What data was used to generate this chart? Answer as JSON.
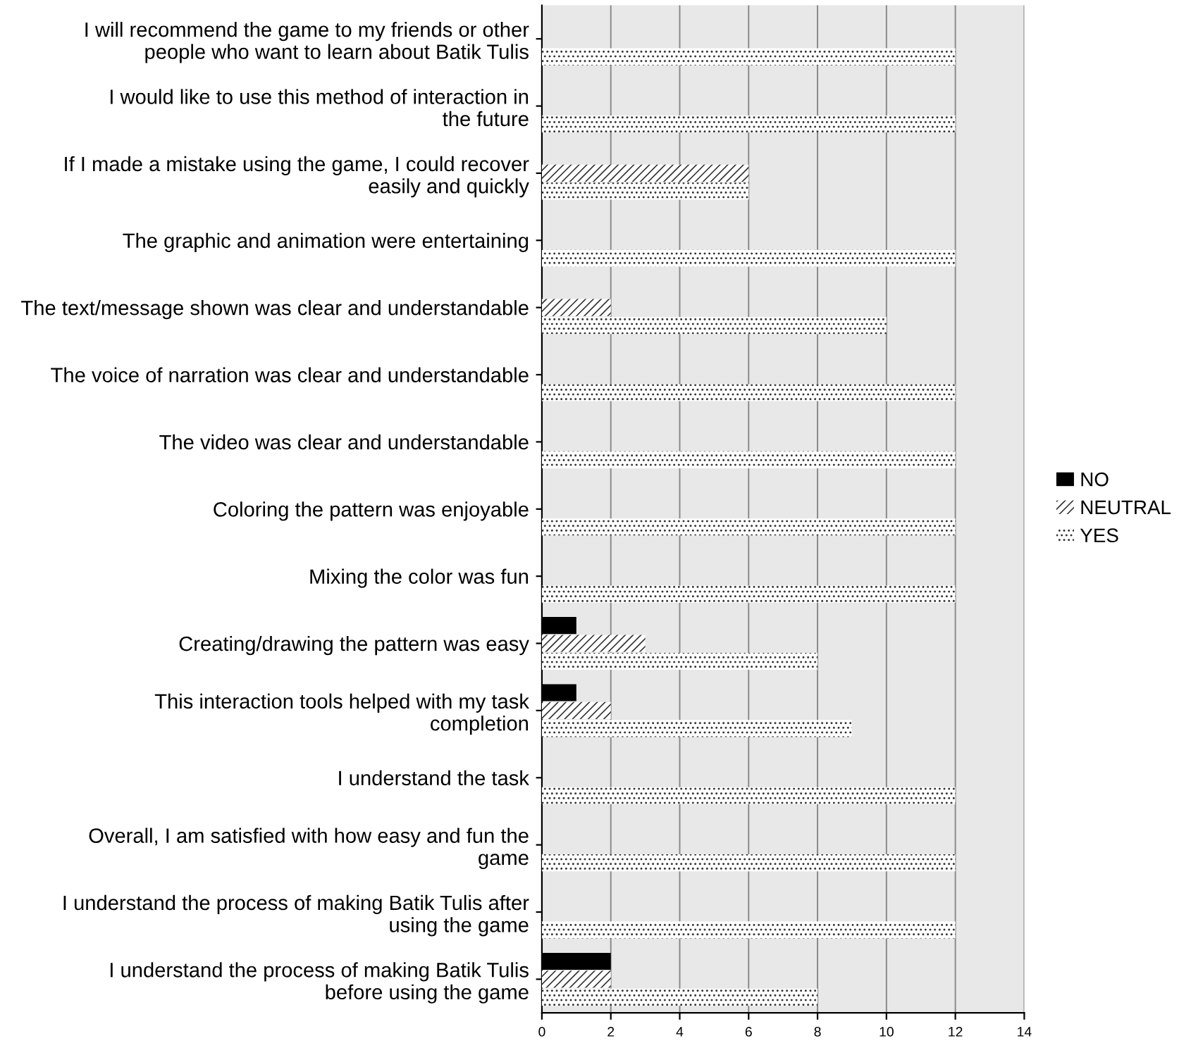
{
  "chart_data": {
    "type": "bar",
    "orientation": "horizontal",
    "categories": [
      "I will recommend the game to my friends or other people who want to learn about Batik Tulis",
      "I would like to use this method of interaction in the future",
      "If I made a mistake using the game, I could recover easily and quickly",
      "The graphic and animation were entertaining",
      "The text/message shown was clear and understandable",
      "The voice of narration was clear and understandable",
      "The video was clear and understandable",
      "Coloring the pattern was enjoyable",
      "Mixing the color was fun",
      "Creating/drawing the pattern was easy",
      "This interaction tools helped with my task completion",
      "I understand the task",
      "Overall, I am satisfied with how easy and fun the game",
      "I understand the process of making Batik Tulis after using the game",
      "I understand the process of making Batik Tulis before using the game"
    ],
    "series": [
      {
        "name": "NO",
        "color": "#000000",
        "values": [
          0,
          0,
          0,
          0,
          0,
          0,
          0,
          0,
          0,
          1,
          1,
          0,
          0,
          0,
          2
        ]
      },
      {
        "name": "NEUTRAL",
        "color": "#ffffff",
        "values": [
          0,
          0,
          6,
          0,
          2,
          0,
          0,
          0,
          0,
          3,
          2,
          0,
          0,
          0,
          2
        ]
      },
      {
        "name": "YES",
        "color": "#ffffff",
        "values": [
          12,
          12,
          6,
          12,
          10,
          12,
          12,
          12,
          12,
          8,
          9,
          12,
          12,
          12,
          8
        ]
      }
    ],
    "xlim": [
      0,
      14
    ],
    "xticks": [
      0,
      2,
      4,
      6,
      8,
      10,
      12,
      14
    ],
    "grid": "x",
    "legend": "right"
  }
}
